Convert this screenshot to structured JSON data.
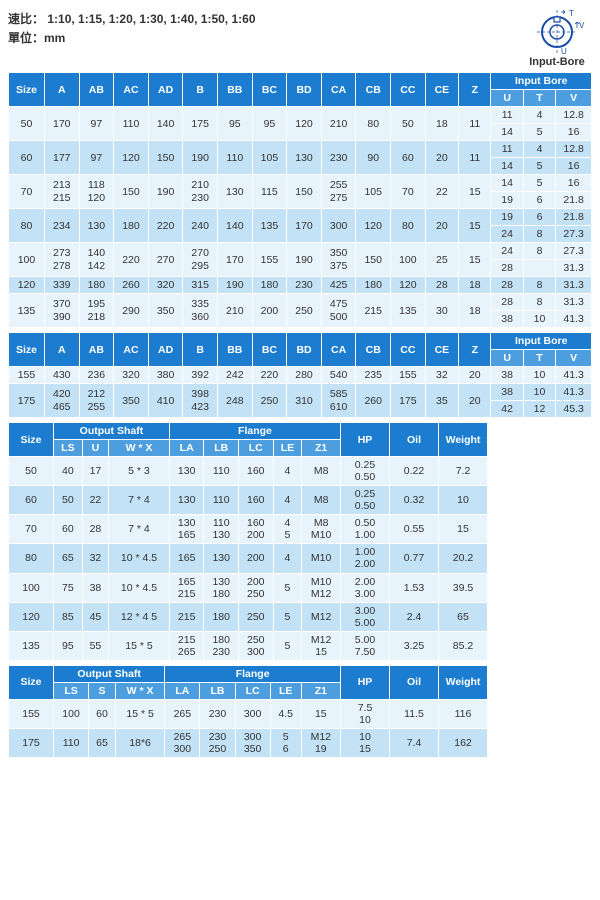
{
  "header": {
    "ratio_label": "速比：",
    "ratio": "1:10, 1:15, 1:20, 1:30, 1:40, 1:50, 1:60",
    "unit_label": "單位：",
    "unit": "mm",
    "diagram_label": "Input-Bore"
  },
  "cols_main": [
    "Size",
    "A",
    "AB",
    "AC",
    "AD",
    "B",
    "BB",
    "BC",
    "BD",
    "CA",
    "CB",
    "CC",
    "CE",
    "Z"
  ],
  "input_bore_label": "Input Bore",
  "input_bore_sub": [
    "U",
    "T",
    "V"
  ],
  "t1_rows": [
    {
      "c": [
        "50",
        "170",
        "97",
        "110",
        "140",
        "175",
        "95",
        "95",
        "120",
        "210",
        "80",
        "50",
        "18",
        "11"
      ],
      "ib": [
        [
          "11",
          "4",
          "12.8"
        ],
        [
          "14",
          "5",
          "16"
        ]
      ],
      "r": 0
    },
    {
      "c": [
        "60",
        "177",
        "97",
        "120",
        "150",
        "190",
        "110",
        "105",
        "130",
        "230",
        "90",
        "60",
        "20",
        "11"
      ],
      "ib": [
        [
          "11",
          "4",
          "12.8"
        ],
        [
          "14",
          "5",
          "16"
        ]
      ],
      "r": 1
    },
    {
      "c": [
        "70",
        [
          "213",
          "215"
        ],
        [
          "118",
          "120"
        ],
        "150",
        "190",
        [
          "210",
          "230"
        ],
        "130",
        "115",
        "150",
        [
          "255",
          "275"
        ],
        "105",
        "70",
        "22",
        "15"
      ],
      "ib": [
        [
          "14",
          "5",
          "16"
        ],
        [
          "19",
          "6",
          "21.8"
        ]
      ],
      "r": 0
    },
    {
      "c": [
        "80",
        "234",
        "130",
        "180",
        "220",
        "240",
        "140",
        "135",
        "170",
        "300",
        "120",
        "80",
        "20",
        "15"
      ],
      "ib": [
        [
          "19",
          "6",
          "21.8"
        ],
        [
          "24",
          "8",
          "27.3"
        ]
      ],
      "r": 1
    },
    {
      "c": [
        "100",
        [
          "273",
          "278"
        ],
        [
          "140",
          "142"
        ],
        "220",
        "270",
        [
          "270",
          "295"
        ],
        "170",
        "155",
        "190",
        [
          "350",
          "375"
        ],
        "150",
        "100",
        "25",
        "15"
      ],
      "ib": [
        [
          "24",
          "8",
          "27.3"
        ],
        [
          "28",
          "",
          "31.3"
        ]
      ],
      "r": 0
    },
    {
      "c": [
        "120",
        "339",
        "180",
        "260",
        "320",
        "315",
        "190",
        "180",
        "230",
        "425",
        "180",
        "120",
        "28",
        "18"
      ],
      "ib": [
        [
          "28",
          "8",
          "31.3"
        ]
      ],
      "r": 1
    },
    {
      "c": [
        "135",
        [
          "370",
          "390"
        ],
        [
          "195",
          "218"
        ],
        "290",
        "350",
        [
          "335",
          "360"
        ],
        "210",
        "200",
        "250",
        [
          "475",
          "500"
        ],
        "215",
        "135",
        "30",
        "18"
      ],
      "ib": [
        [
          "28",
          "8",
          "31.3"
        ],
        [
          "38",
          "10",
          "41.3"
        ]
      ],
      "r": 0
    }
  ],
  "t2_rows": [
    {
      "c": [
        "155",
        "430",
        "236",
        "320",
        "380",
        "392",
        "242",
        "220",
        "280",
        "540",
        "235",
        "155",
        "32",
        "20"
      ],
      "ib": [
        [
          "38",
          "10",
          "41.3"
        ]
      ],
      "r": 0
    },
    {
      "c": [
        "175",
        [
          "420",
          "465"
        ],
        [
          "212",
          "255"
        ],
        "350",
        "410",
        [
          "398",
          "423"
        ],
        "248",
        "250",
        "310",
        [
          "585",
          "610"
        ],
        "260",
        "175",
        "35",
        "20"
      ],
      "ib": [
        [
          "38",
          "10",
          "41.3"
        ],
        [
          "42",
          "12",
          "45.3"
        ]
      ],
      "r": 1
    }
  ],
  "output_shaft_label": "Output Shaft",
  "flange_label": "Flange",
  "t3_sub": [
    "LS",
    "U",
    "W * X",
    "LA",
    "LB",
    "LC",
    "LE",
    "Z1"
  ],
  "t3_tail": [
    "HP",
    "Oil",
    "Weight"
  ],
  "t3_rows": [
    {
      "c": [
        "50",
        "40",
        "17",
        "5 * 3",
        "130",
        "110",
        "160",
        "4",
        "M8",
        [
          "0.25",
          "0.50"
        ],
        "0.22",
        "7.2"
      ],
      "r": 0
    },
    {
      "c": [
        "60",
        "50",
        "22",
        "7 * 4",
        "130",
        "110",
        "160",
        "4",
        "M8",
        [
          "0.25",
          "0.50"
        ],
        "0.32",
        "10"
      ],
      "r": 1
    },
    {
      "c": [
        "70",
        "60",
        "28",
        "7 * 4",
        [
          "130",
          "165"
        ],
        [
          "110",
          "130"
        ],
        [
          "160",
          "200"
        ],
        [
          "4",
          "5"
        ],
        [
          "M8",
          "M10"
        ],
        [
          "0.50",
          "1.00"
        ],
        "0.55",
        "15"
      ],
      "r": 0
    },
    {
      "c": [
        "80",
        "65",
        "32",
        "10 * 4.5",
        "165",
        "130",
        "200",
        "4",
        "M10",
        [
          "1.00",
          "2.00"
        ],
        "0.77",
        "20.2"
      ],
      "r": 1
    },
    {
      "c": [
        "100",
        "75",
        "38",
        "10 * 4.5",
        [
          "165",
          "215"
        ],
        [
          "130",
          "180"
        ],
        [
          "200",
          "250"
        ],
        "5",
        [
          "M10",
          "M12"
        ],
        [
          "2.00",
          "3.00"
        ],
        "1.53",
        "39.5"
      ],
      "r": 0
    },
    {
      "c": [
        "120",
        "85",
        "45",
        "12 * 4 5",
        "215",
        "180",
        "250",
        "5",
        "M12",
        [
          "3.00",
          "5.00"
        ],
        "2.4",
        "65"
      ],
      "r": 1
    },
    {
      "c": [
        "135",
        "95",
        "55",
        "15 * 5",
        [
          "215",
          "265"
        ],
        [
          "180",
          "230"
        ],
        [
          "250",
          "300"
        ],
        "5",
        [
          "M12",
          "15"
        ],
        [
          "5.00",
          "7.50"
        ],
        "3.25",
        "85.2"
      ],
      "r": 0
    }
  ],
  "t4_sub": [
    "LS",
    "S",
    "W * X",
    "LA",
    "LB",
    "LC",
    "LE",
    "Z1"
  ],
  "t4_rows": [
    {
      "c": [
        "155",
        "100",
        "60",
        "15 * 5",
        "265",
        "230",
        "300",
        "4.5",
        "15",
        [
          "7.5",
          "10"
        ],
        "11.5",
        "116"
      ],
      "r": 0
    },
    {
      "c": [
        "175",
        "110",
        "65",
        "18*6",
        [
          "265",
          "300"
        ],
        [
          "230",
          "250"
        ],
        [
          "300",
          "350"
        ],
        [
          "5",
          "6"
        ],
        [
          "M12",
          "19"
        ],
        [
          "10",
          "15"
        ],
        "7.4",
        "162"
      ],
      "r": 1
    }
  ],
  "size_label": "Size"
}
